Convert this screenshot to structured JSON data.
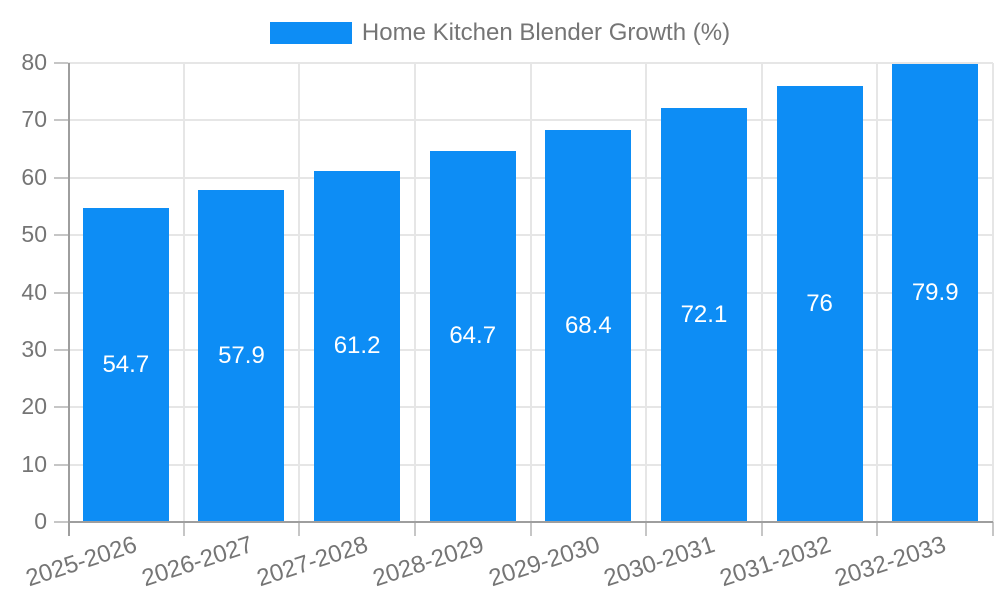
{
  "legend": {
    "series_label": "Home Kitchen Blender Growth (%)"
  },
  "colors": {
    "bar": "#0d8df5",
    "axis_text": "#757575",
    "grid_line": "#e6e6e6",
    "axis_line": "#9e9e9e",
    "tick": "#c6c6c6",
    "value_label": "#ffffff",
    "background": "#ffffff"
  },
  "chart_data": {
    "type": "bar",
    "title": "Home Kitchen Blender Growth (%)",
    "categories": [
      "2025-2026",
      "2026-2027",
      "2027-2028",
      "2028-2029",
      "2029-2030",
      "2030-2031",
      "2031-2032",
      "2032-2033"
    ],
    "series": [
      {
        "name": "Home Kitchen Blender Growth (%)",
        "values": [
          54.7,
          57.9,
          61.2,
          64.7,
          68.4,
          72.1,
          76,
          79.9
        ]
      }
    ],
    "value_labels": [
      "54.7",
      "57.9",
      "61.2",
      "64.7",
      "68.4",
      "72.1",
      "76",
      "79.9"
    ],
    "xlabel": "",
    "ylabel": "",
    "ylim": [
      0,
      80
    ],
    "y_ticks": [
      0,
      10,
      20,
      30,
      40,
      50,
      60,
      70,
      80
    ],
    "grid": true,
    "legend_position": "top-center",
    "value_label_position": "inside-center",
    "x_tick_rotation_deg": -18
  }
}
